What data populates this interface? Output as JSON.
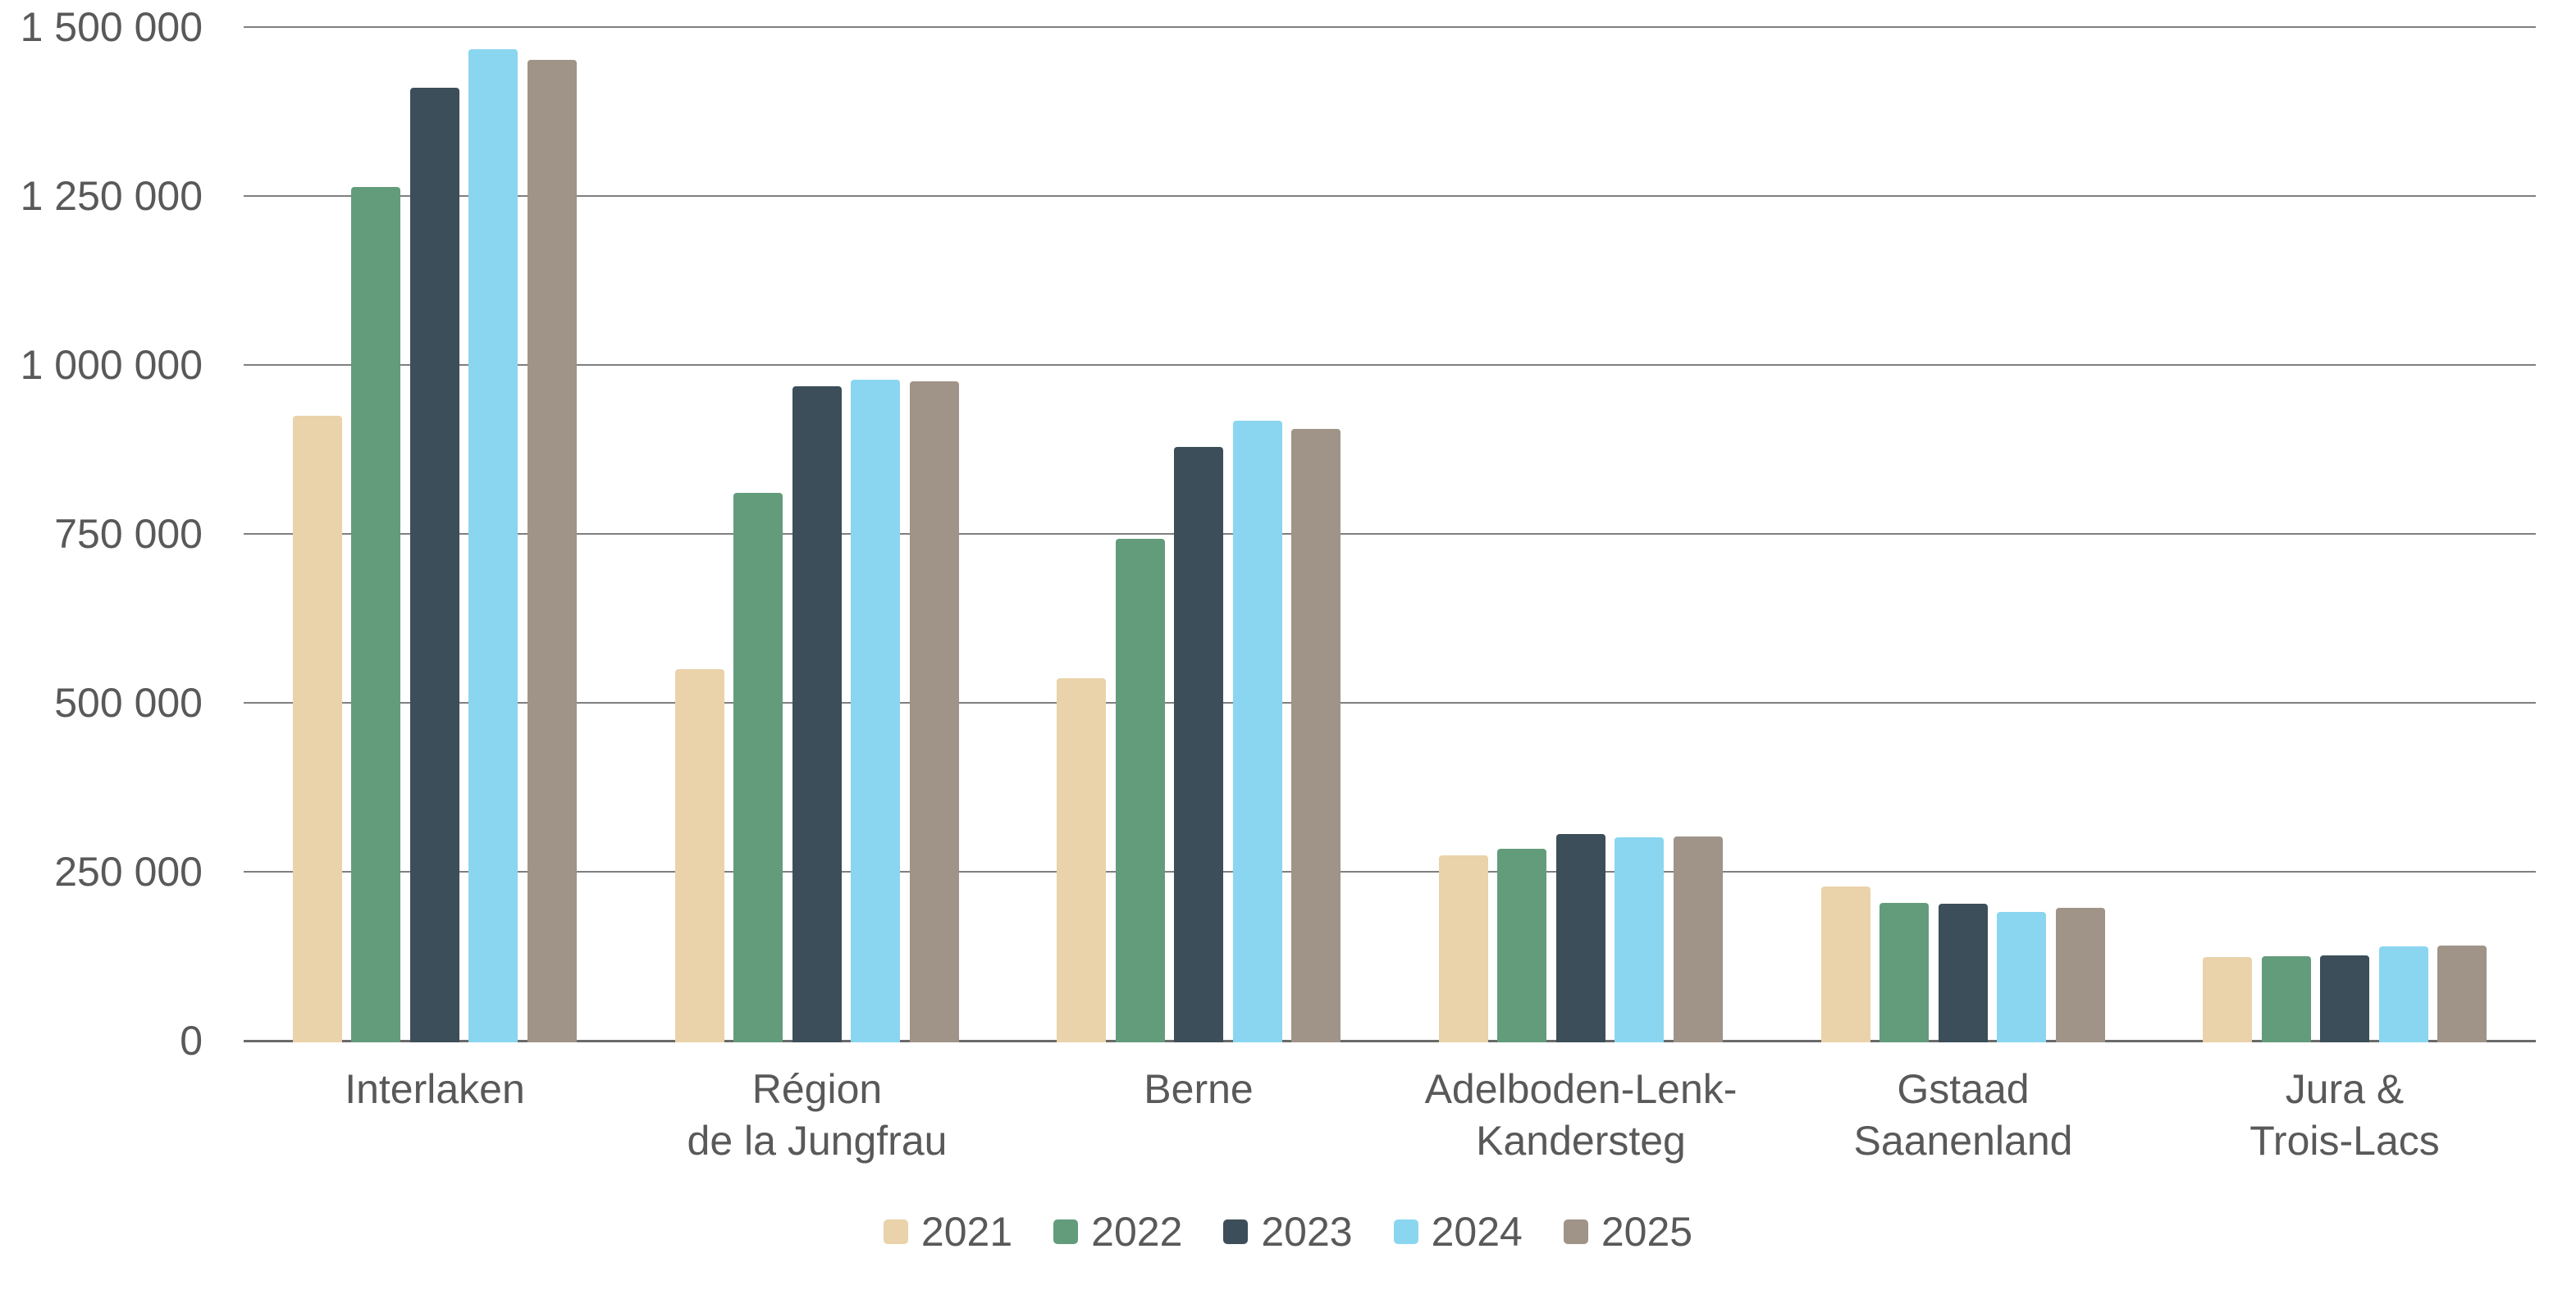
{
  "chart_data": {
    "type": "bar",
    "title": "",
    "categories": [
      "Interlaken",
      "Région de la Jungfrau",
      "Berne",
      "Adelboden-Lenk-Kandersteg",
      "Gstaad Saanenland",
      "Jura & Trois-Lacs"
    ],
    "category_label_lines": [
      [
        "Interlaken"
      ],
      [
        "Région",
        "de la Jungfrau"
      ],
      [
        "Berne"
      ],
      [
        "Adelboden-Lenk-",
        "Kandersteg"
      ],
      [
        "Gstaad",
        "Saanenland"
      ],
      [
        "Jura &",
        "Trois-Lacs"
      ]
    ],
    "series": [
      {
        "name": "2021",
        "color": "#EAD2AA",
        "values": [
          925000,
          550000,
          537000,
          274000,
          228000,
          124000
        ]
      },
      {
        "name": "2022",
        "color": "#639C7B",
        "values": [
          1263000,
          811000,
          743000,
          284000,
          204000,
          125000
        ]
      },
      {
        "name": "2023",
        "color": "#3C4E59",
        "values": [
          1410000,
          968000,
          879000,
          306000,
          203000,
          126000
        ]
      },
      {
        "name": "2024",
        "color": "#8AD6F0",
        "values": [
          1467000,
          978000,
          918000,
          301000,
          190000,
          139000
        ]
      },
      {
        "name": "2025",
        "color": "#A09388",
        "values": [
          1452000,
          976000,
          905000,
          302000,
          197000,
          141000
        ]
      }
    ],
    "y_ticks": [
      "1 500 000",
      "1 250 000",
      "1 000 000",
      "750 000",
      "500 000",
      "250 000",
      "0"
    ],
    "y_tick_values": [
      1500000,
      1250000,
      1000000,
      750000,
      500000,
      250000,
      0
    ],
    "ylim": [
      0,
      1500000
    ],
    "grid": "horizontal-only",
    "legend_position": "bottom-center",
    "legend_labels": [
      "2021",
      "2022",
      "2023",
      "2024",
      "2025"
    ]
  },
  "colors": {
    "background": "#FFFFFF",
    "gridline": "#7F7F7F",
    "axis_line": "#6A6A6A",
    "label_text": "#595959"
  }
}
